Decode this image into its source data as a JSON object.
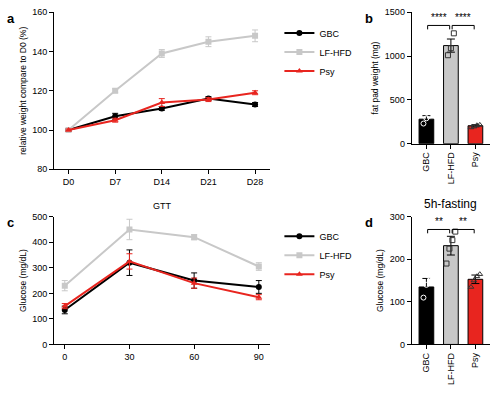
{
  "chart_data": [
    {
      "type": "line",
      "annotations": [
        {
          "text": "a"
        }
      ],
      "y_label": "relative weight compare to D0 (%)",
      "categories": [
        "D0",
        "D7",
        "D14",
        "D21",
        "D28"
      ],
      "series": [
        {
          "name": "GBC",
          "color": "#000000",
          "marker": "circle",
          "values": [
            100,
            107,
            111,
            116,
            113
          ],
          "errors": [
            0.5,
            1.5,
            1,
            1,
            1
          ]
        },
        {
          "name": "LF-HFD",
          "color": "#c8c8c8",
          "marker": "square",
          "values": [
            100,
            120,
            139,
            145,
            148
          ],
          "errors": [
            0.5,
            1,
            2,
            2.5,
            3
          ]
        },
        {
          "name": "Psy",
          "color": "#e8251f",
          "marker": "triangle-up",
          "values": [
            100,
            105,
            114,
            115.5,
            119
          ],
          "errors": [
            0.5,
            1,
            2,
            1,
            1
          ]
        }
      ],
      "ylim": [
        80,
        160
      ],
      "yticks": [
        80,
        100,
        120,
        140,
        160
      ],
      "legend": "right",
      "grid": false
    },
    {
      "type": "bar",
      "annotations": [
        {
          "text": "b"
        },
        {
          "text": "****",
          "between": [
            "GBC",
            "LF-HFD"
          ]
        },
        {
          "text": "****",
          "between": [
            "LF-HFD",
            "Psy"
          ]
        }
      ],
      "y_label": "fat pad weight (mg)",
      "categories": [
        "GBC",
        "LF-HFD",
        "Psy"
      ],
      "values": [
        280,
        1120,
        205
      ],
      "errors": [
        40,
        75,
        12
      ],
      "points": [
        [
          230,
          290,
          320
        ],
        [
          1010,
          1090,
          1260
        ],
        [
          185,
          195,
          210,
          215
        ]
      ],
      "colors": [
        "#000000",
        "#c8c8c8",
        "#e8251f"
      ],
      "ylim": [
        0,
        1500
      ],
      "yticks": [
        0,
        500,
        1000,
        1500
      ],
      "grid": false
    },
    {
      "type": "line",
      "title": "GTT",
      "annotations": [
        {
          "text": "c"
        }
      ],
      "y_label": "Glucose (mg/dL)",
      "x": [
        0,
        30,
        60,
        90
      ],
      "series": [
        {
          "name": "GBC",
          "color": "#000000",
          "marker": "circle",
          "values": [
            135,
            320,
            250,
            225
          ],
          "errors": [
            15,
            50,
            30,
            25
          ]
        },
        {
          "name": "LF-HFD",
          "color": "#c8c8c8",
          "marker": "square",
          "values": [
            230,
            450,
            420,
            305
          ],
          "errors": [
            20,
            40,
            10,
            15
          ]
        },
        {
          "name": "Psy",
          "color": "#e8251f",
          "marker": "triangle-up",
          "values": [
            150,
            325,
            240,
            185
          ],
          "errors": [
            10,
            30,
            20,
            10
          ]
        }
      ],
      "xlim": [
        -5,
        95
      ],
      "xticks": [
        0,
        30,
        60,
        90
      ],
      "ylim": [
        0,
        500
      ],
      "yticks": [
        0,
        100,
        200,
        300,
        400,
        500
      ],
      "legend": "right",
      "grid": false
    },
    {
      "type": "bar",
      "title": "5h-fasting",
      "annotations": [
        {
          "text": "d"
        },
        {
          "text": "**",
          "between": [
            "GBC",
            "LF-HFD"
          ]
        },
        {
          "text": "**",
          "between": [
            "LF-HFD",
            "Psy"
          ]
        }
      ],
      "y_label": "Glucose (mg/dL)",
      "categories": [
        "GBC",
        "LF-HFD",
        "Psy"
      ],
      "values": [
        135,
        232,
        153
      ],
      "errors": [
        20,
        22,
        10
      ],
      "points": [
        [
          110,
          140,
          160
        ],
        [
          190,
          225,
          245,
          265
        ],
        [
          135,
          150,
          160,
          165
        ]
      ],
      "colors": [
        "#000000",
        "#c8c8c8",
        "#e8251f"
      ],
      "ylim": [
        0,
        300
      ],
      "yticks": [
        0,
        100,
        200,
        300
      ],
      "grid": false
    }
  ]
}
